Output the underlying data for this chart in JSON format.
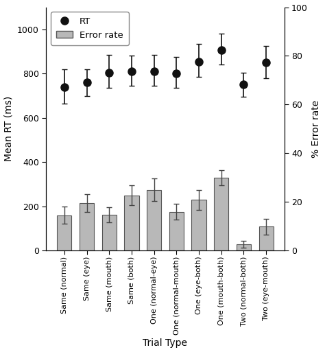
{
  "categories": [
    "Same (normal)",
    "Same (eye)",
    "Same (mouth)",
    "Same (both)",
    "One (normal-eye)",
    "One (normal-mouth)",
    "One (eye-both)",
    "One (mouth-both)",
    "Two (normal-both)",
    "Two (eye-mouth)"
  ],
  "rt_values": [
    740,
    760,
    805,
    810,
    810,
    800,
    855,
    905,
    750,
    850
  ],
  "rt_errors_upper": [
    80,
    60,
    80,
    70,
    75,
    75,
    80,
    75,
    55,
    75
  ],
  "rt_errors_lower": [
    75,
    60,
    70,
    65,
    65,
    65,
    70,
    65,
    55,
    70
  ],
  "bar_values": [
    160,
    215,
    162,
    250,
    275,
    175,
    230,
    330,
    28,
    108
  ],
  "bar_errors": [
    40,
    40,
    35,
    45,
    50,
    35,
    45,
    35,
    15,
    35
  ],
  "bar_color": "#b8b8b8",
  "bar_edgecolor": "#555555",
  "dot_color": "#111111",
  "left_ylim": [
    0,
    1100
  ],
  "left_yticks": [
    0,
    200,
    400,
    600,
    800,
    1000
  ],
  "right_ylim": [
    0,
    100
  ],
  "right_yticks": [
    0,
    20,
    40,
    60,
    80,
    100
  ],
  "ylabel_left": "Mean RT (ms)",
  "ylabel_right": "% Error rate",
  "xlabel": "Trial Type",
  "legend_rt_label": "RT",
  "legend_err_label": "Error rate",
  "bar_width": 0.65,
  "figsize": [
    4.74,
    5.13
  ],
  "dpi": 100
}
